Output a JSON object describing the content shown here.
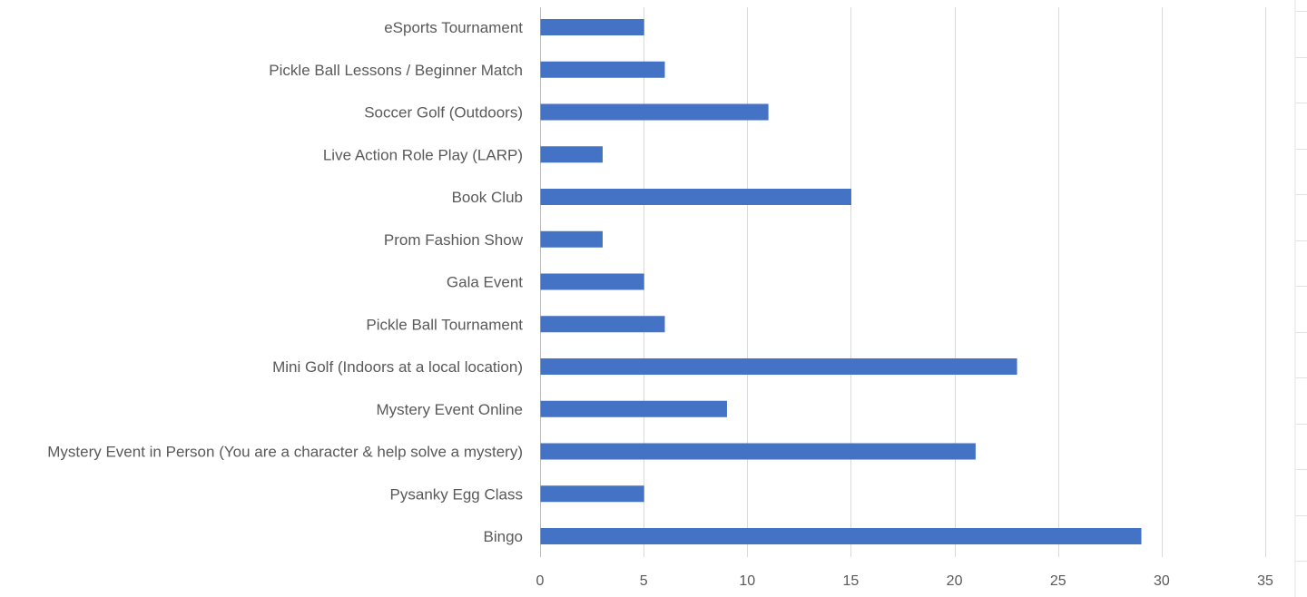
{
  "chart_data": {
    "type": "bar",
    "orientation": "horizontal",
    "categories": [
      "eSports Tournament",
      "Pickle Ball Lessons / Beginner Match",
      "Soccer Golf (Outdoors)",
      "Live Action Role Play (LARP)",
      "Book Club",
      "Prom Fashion Show",
      "Gala Event",
      "Pickle Ball Tournament",
      "Mini Golf (Indoors at a local location)",
      "Mystery Event Online",
      "Mystery Event in Person (You are a character & help solve a mystery)",
      "Pysanky Egg Class",
      "Bingo"
    ],
    "values": [
      5,
      6,
      11,
      3,
      15,
      3,
      5,
      6,
      23,
      9,
      21,
      5,
      29
    ],
    "xlim": [
      0,
      35
    ],
    "xticks": [
      0,
      5,
      10,
      15,
      20,
      25,
      30,
      35
    ],
    "xtick_labels": [
      "0",
      "5",
      "10",
      "15",
      "20",
      "25",
      "30",
      "35"
    ],
    "grid": true,
    "legend": "none",
    "title": "",
    "xlabel": "",
    "ylabel": "",
    "bar_color": "#4472c4",
    "grid_color": "#d9d9d9"
  }
}
